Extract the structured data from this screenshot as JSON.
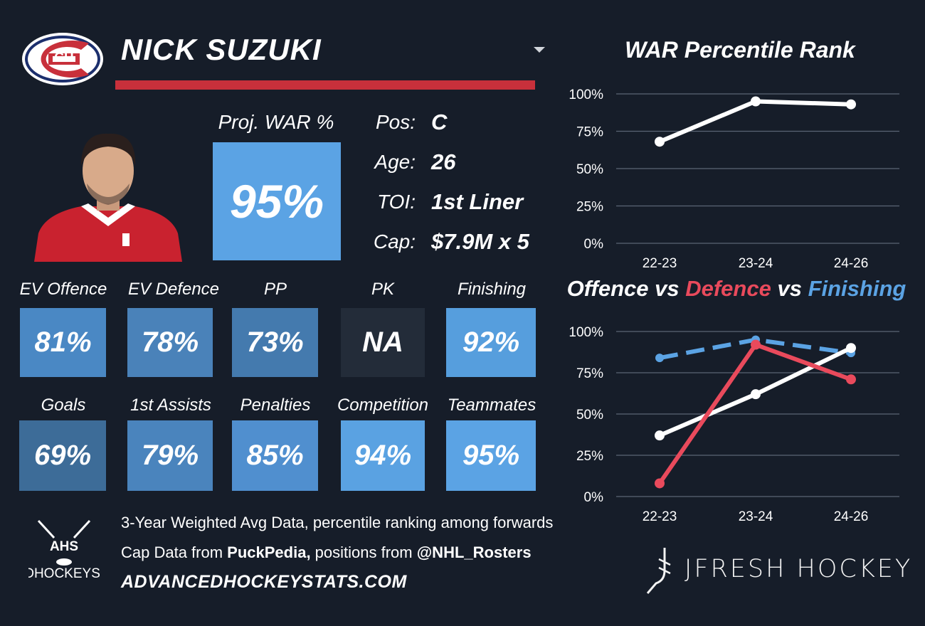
{
  "header": {
    "player_name": "NICK SUZUKI",
    "team_logo_text": "CH",
    "dropdown_icon": "chevron-down-icon"
  },
  "projection": {
    "label": "Proj. WAR %",
    "value": "95%",
    "color": "#5ba3e4"
  },
  "info": [
    {
      "label": "Pos:",
      "value": "C"
    },
    {
      "label": "Age:",
      "value": "26"
    },
    {
      "label": "TOI:",
      "value": "1st Liner"
    },
    {
      "label": "Cap:",
      "value": "$7.9M x 5"
    }
  ],
  "metrics_row1": [
    {
      "label": "EV Offence",
      "value": "81%",
      "color": "#4a88c4"
    },
    {
      "label": "EV Defence",
      "value": "78%",
      "color": "#4a82b9"
    },
    {
      "label": "PP",
      "value": "73%",
      "color": "#447aae"
    },
    {
      "label": "PK",
      "value": "NA",
      "color": "#232c39"
    },
    {
      "label": "Finishing",
      "value": "92%",
      "color": "#569edd"
    }
  ],
  "metrics_row2": [
    {
      "label": "Goals",
      "value": "69%",
      "color": "#3d6c98"
    },
    {
      "label": "1st Assists",
      "value": "79%",
      "color": "#4a84bd"
    },
    {
      "label": "Penalties",
      "value": "85%",
      "color": "#508fcf"
    },
    {
      "label": "Competition",
      "value": "94%",
      "color": "#5aa2e2"
    },
    {
      "label": "Teammates",
      "value": "95%",
      "color": "#5ba3e4"
    }
  ],
  "footer": {
    "line1": "3-Year Weighted Avg Data, percentile ranking among forwards",
    "line2_prefix": "Cap Data from ",
    "line2_source1": "PuckPedia,",
    "line2_mid": " positions from ",
    "line2_source2": "@NHL_Rosters",
    "url": "ADVANCEDHOCKEYSTATS.COM",
    "ahs_logo_text": "AHS",
    "ahs_logo_subtext": "ADVANCEDHOCKEYSTATS.COM",
    "brand": "JFRESH HOCKEY"
  },
  "chart_data": [
    {
      "type": "line",
      "title": "WAR Percentile Rank",
      "categories": [
        "22-23",
        "23-24",
        "24-26"
      ],
      "series": [
        {
          "values": [
            68,
            95,
            93
          ],
          "color": "#ffffff",
          "dash": false
        }
      ],
      "yticks": [
        "0%",
        "25%",
        "50%",
        "75%",
        "100%"
      ],
      "ylim": [
        0,
        100
      ],
      "grid": true
    },
    {
      "type": "line",
      "title_parts": [
        "Offence",
        " vs ",
        "Defence",
        " vs ",
        "Finishing"
      ],
      "categories": [
        "22-23",
        "23-24",
        "24-26"
      ],
      "series": [
        {
          "values": [
            84,
            95,
            87
          ],
          "color": "#5ba3e4",
          "dash": true
        },
        {
          "values": [
            37,
            62,
            90
          ],
          "color": "#ffffff",
          "dash": false
        },
        {
          "values": [
            8,
            92,
            71
          ],
          "color": "#e94a5c",
          "dash": false
        }
      ],
      "yticks": [
        "0%",
        "25%",
        "50%",
        "75%",
        "100%"
      ],
      "ylim": [
        0,
        100
      ],
      "grid": true
    }
  ]
}
